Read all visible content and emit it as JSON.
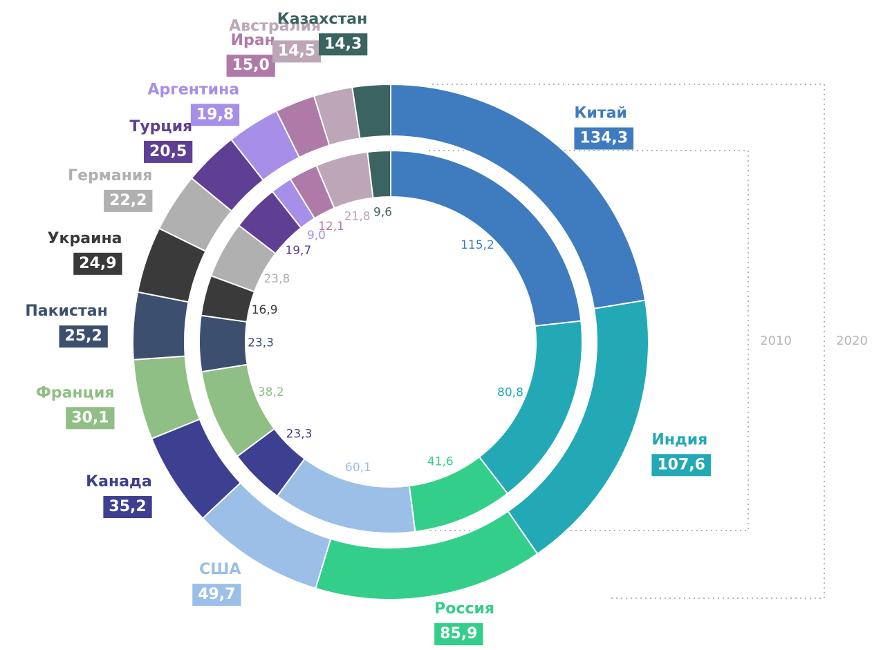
{
  "chart_data": {
    "type": "donut",
    "categories": [
      "Китай",
      "Индия",
      "Россия",
      "США",
      "Канада",
      "Франция",
      "Пакистан",
      "Украина",
      "Германия",
      "Турция",
      "Аргентина",
      "Иран",
      "Австралия",
      "Казахстан"
    ],
    "colors": [
      "#3f7bbf",
      "#22a9b5",
      "#33cf8a",
      "#9bbfe6",
      "#3d3f91",
      "#8fbf84",
      "#3c4f6e",
      "#3a3a3a",
      "#b0b0b0",
      "#5e3f94",
      "#a78ee8",
      "#b07aa8",
      "#bca6b8",
      "#3a6361"
    ],
    "series": [
      {
        "name": "2020",
        "values": [
          134.3,
          107.6,
          85.9,
          49.7,
          35.2,
          30.1,
          25.2,
          24.9,
          22.2,
          20.5,
          19.8,
          15.0,
          14.5,
          14.3
        ],
        "value_labels": [
          "134,3",
          "107,6",
          "85,9",
          "49,7",
          "35,2",
          "30,1",
          "25,2",
          "24,9",
          "22,2",
          "20,5",
          "19,8",
          "15,0",
          "14,5",
          "14,3"
        ]
      },
      {
        "name": "2010",
        "values": [
          115.2,
          80.8,
          41.6,
          60.1,
          23.3,
          38.2,
          23.3,
          16.9,
          23.8,
          19.7,
          9.0,
          12.1,
          21.8,
          9.6
        ],
        "value_labels": [
          "115,2",
          "80,8",
          "41,6",
          "60,1",
          "23,3",
          "38,2",
          "23,3",
          "16,9",
          "23,8",
          "19,7",
          "9,0",
          "12,1",
          "21,8",
          "9,6"
        ]
      }
    ]
  }
}
